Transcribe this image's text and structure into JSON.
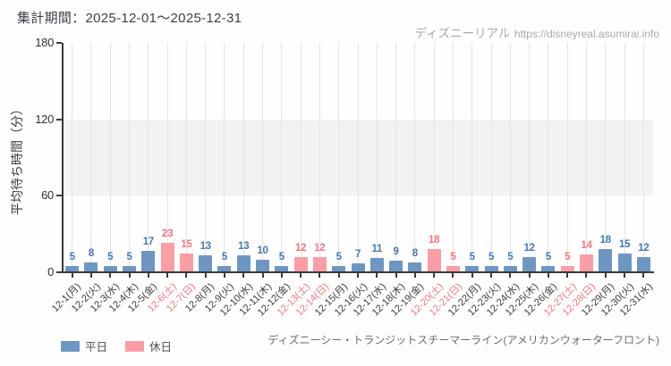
{
  "header": {
    "period_label": "集計期間：2025-12-01～2025-12-31",
    "watermark": {
      "brand": "ディズニーリアル",
      "url": "https://disneyreal.asumirai.info"
    }
  },
  "chart_data": {
    "type": "bar",
    "title": "",
    "xlabel": "",
    "ylabel": "平均待ち時間（分）",
    "ylim": [
      0,
      180
    ],
    "yticks": [
      0,
      60,
      120,
      180
    ],
    "grid": "vertical gridlines at each category; shaded horizontal band between 60 and 120",
    "legend_position": "bottom-left",
    "categories": [
      "12-1(月)",
      "12-2(火)",
      "12-3(水)",
      "12-4(木)",
      "12-5(金)",
      "12-6(土)",
      "12-7(日)",
      "12-8(月)",
      "12-9(火)",
      "12-10(水)",
      "12-11(木)",
      "12-12(金)",
      "12-13(土)",
      "12-14(日)",
      "12-15(月)",
      "12-16(火)",
      "12-17(水)",
      "12-18(木)",
      "12-19(金)",
      "12-20(土)",
      "12-21(日)",
      "12-22(月)",
      "12-23(火)",
      "12-24(水)",
      "12-25(木)",
      "12-26(金)",
      "12-27(土)",
      "12-28(日)",
      "12-29(月)",
      "12-30(火)",
      "12-31(水)"
    ],
    "values": [
      5,
      8,
      5,
      5,
      17,
      23,
      15,
      13,
      5,
      13,
      10,
      5,
      12,
      12,
      5,
      7,
      11,
      9,
      8,
      18,
      5,
      5,
      5,
      5,
      12,
      5,
      5,
      14,
      18,
      15,
      12
    ],
    "day_types": [
      "weekday",
      "weekday",
      "weekday",
      "weekday",
      "weekday",
      "holiday",
      "holiday",
      "weekday",
      "weekday",
      "weekday",
      "weekday",
      "weekday",
      "holiday",
      "holiday",
      "weekday",
      "weekday",
      "weekday",
      "weekday",
      "weekday",
      "holiday",
      "holiday",
      "weekday",
      "weekday",
      "weekday",
      "weekday",
      "weekday",
      "holiday",
      "holiday",
      "weekday",
      "weekday",
      "weekday"
    ],
    "series": [
      {
        "name": "平日",
        "bar_color": "#6e96c3",
        "label_color": "#4577b5",
        "day_type": "weekday"
      },
      {
        "name": "休日",
        "bar_color": "#fa9da4",
        "label_color": "#f4757f",
        "day_type": "holiday"
      }
    ]
  },
  "footer": {
    "attraction_label": "ディズニーシー・トランジットスチーマーライン(アメリカンウォーターフロント)"
  },
  "colors": {
    "axis": "#3a3a3a",
    "gridline": "#e4e4e3",
    "band": "#f2f2f1",
    "holiday_tick_label": "#f4757f",
    "weekday_tick_label": "#3b3b3b",
    "watermark": "#a9a9a9"
  }
}
